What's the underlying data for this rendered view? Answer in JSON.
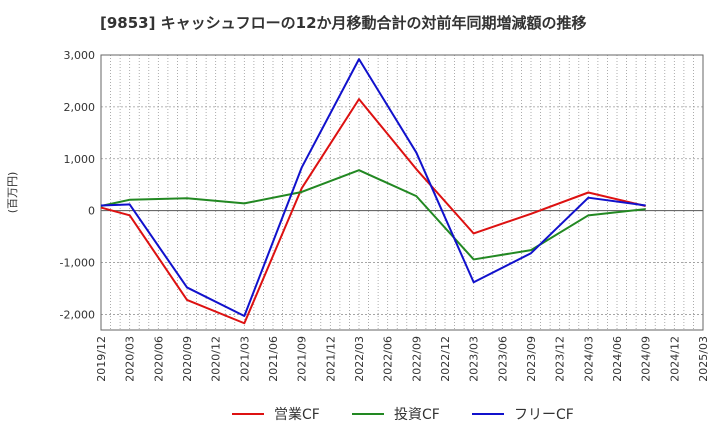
{
  "chart_data": {
    "type": "line",
    "title": "[9853]  キャッシュフローの12か月移動合計の対前年同期増減額の推移",
    "ylabel": "(百万円)",
    "xlabel": "",
    "ylim": [
      -2300,
      3000
    ],
    "yticks": [
      3000,
      2000,
      1000,
      0,
      -1000,
      -2000
    ],
    "ytick_labels": [
      "3,000",
      "2,000",
      "1,000",
      "0",
      "-1,000",
      "-2,000"
    ],
    "x_tick_labels": [
      "2019/12",
      "2020/03",
      "2020/06",
      "2020/09",
      "2020/12",
      "2021/03",
      "2021/06",
      "2021/09",
      "2021/12",
      "2022/03",
      "2022/06",
      "2022/09",
      "2022/12",
      "2023/03",
      "2023/06",
      "2023/09",
      "2023/12",
      "2024/03",
      "2024/06",
      "2024/09",
      "2024/12",
      "2025/03"
    ],
    "grid": true,
    "legend_position": "bottom",
    "series": [
      {
        "name": "営業CF",
        "color": "#dd1111",
        "points": [
          {
            "x": "2019/12",
            "y": 60
          },
          {
            "x": "2020/03",
            "y": -90
          },
          {
            "x": "2020/09",
            "y": -1720
          },
          {
            "x": "2021/03",
            "y": -2170
          },
          {
            "x": "2021/09",
            "y": 430
          },
          {
            "x": "2022/03",
            "y": 2150
          },
          {
            "x": "2022/09",
            "y": 800
          },
          {
            "x": "2023/03",
            "y": -440
          },
          {
            "x": "2023/09",
            "y": -60
          },
          {
            "x": "2024/03",
            "y": 350
          },
          {
            "x": "2024/09",
            "y": 90
          }
        ]
      },
      {
        "name": "投資CF",
        "color": "#228822",
        "points": [
          {
            "x": "2019/12",
            "y": 90
          },
          {
            "x": "2020/03",
            "y": 210
          },
          {
            "x": "2020/09",
            "y": 240
          },
          {
            "x": "2021/03",
            "y": 140
          },
          {
            "x": "2021/09",
            "y": 360
          },
          {
            "x": "2022/03",
            "y": 780
          },
          {
            "x": "2022/09",
            "y": 280
          },
          {
            "x": "2023/03",
            "y": -940
          },
          {
            "x": "2023/09",
            "y": -760
          },
          {
            "x": "2024/03",
            "y": -90
          },
          {
            "x": "2024/09",
            "y": 30
          }
        ]
      },
      {
        "name": "フリーCF",
        "color": "#1111cc",
        "points": [
          {
            "x": "2019/12",
            "y": 100
          },
          {
            "x": "2020/03",
            "y": 120
          },
          {
            "x": "2020/09",
            "y": -1480
          },
          {
            "x": "2021/03",
            "y": -2030
          },
          {
            "x": "2021/09",
            "y": 830
          },
          {
            "x": "2022/03",
            "y": 2920
          },
          {
            "x": "2022/09",
            "y": 1120
          },
          {
            "x": "2023/03",
            "y": -1380
          },
          {
            "x": "2023/09",
            "y": -820
          },
          {
            "x": "2024/03",
            "y": 250
          },
          {
            "x": "2024/09",
            "y": 100
          }
        ]
      }
    ]
  }
}
